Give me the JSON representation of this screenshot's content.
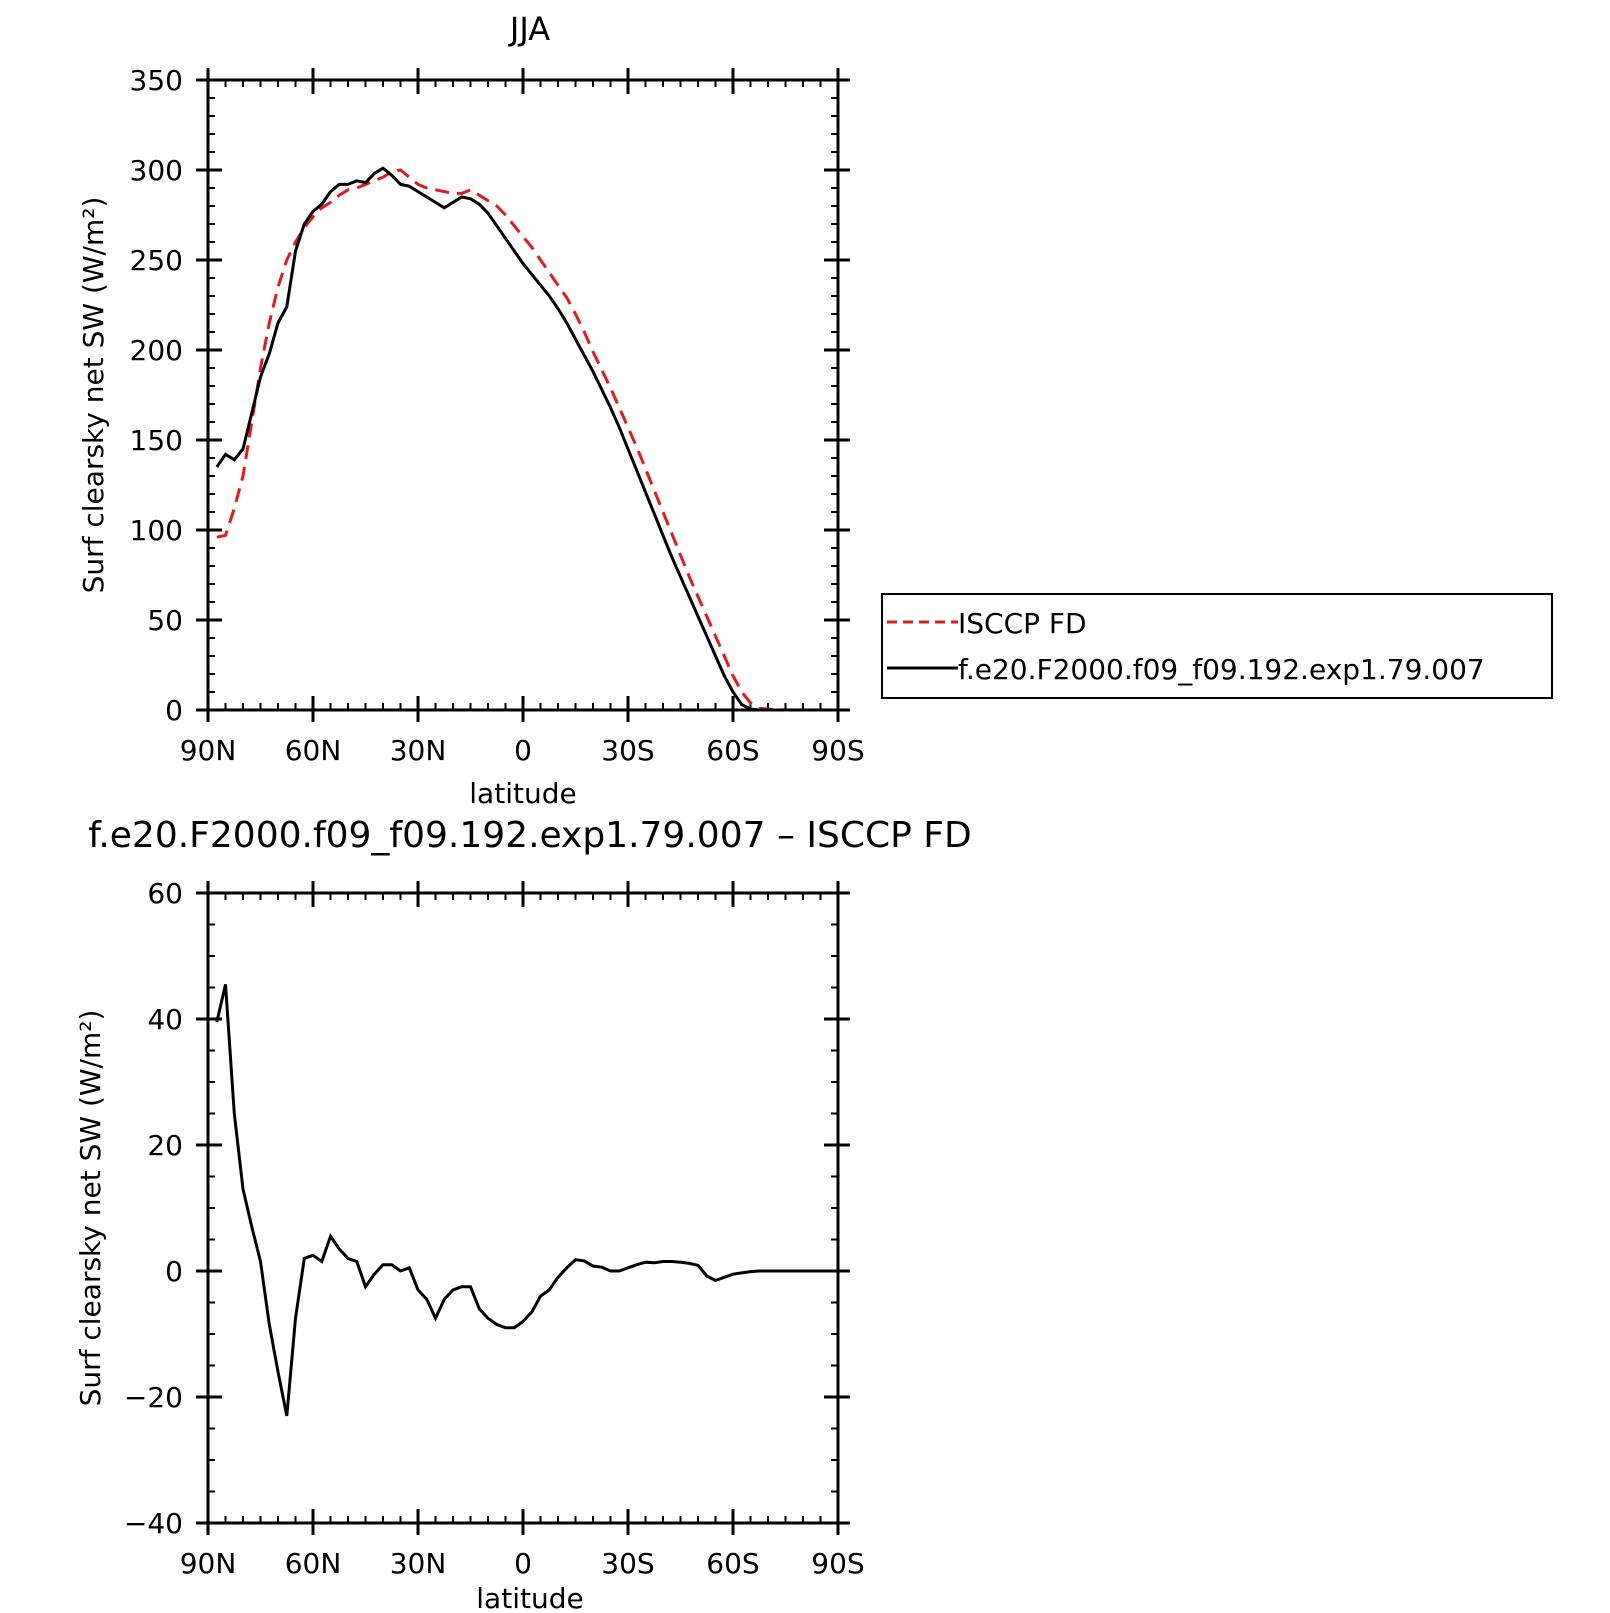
{
  "chart_data": [
    {
      "type": "line",
      "title": "JJA",
      "xlabel": "latitude",
      "ylabel": "Surf clearsky net SW (W/m²)",
      "xlim": [
        90,
        -90
      ],
      "ylim": [
        0,
        350
      ],
      "xticks": [
        {
          "value": 90,
          "label": "90N"
        },
        {
          "value": 60,
          "label": "60N"
        },
        {
          "value": 30,
          "label": "30N"
        },
        {
          "value": 0,
          "label": "0"
        },
        {
          "value": -30,
          "label": "30S"
        },
        {
          "value": -60,
          "label": "60S"
        },
        {
          "value": -90,
          "label": "90S"
        }
      ],
      "yticks": [
        {
          "value": 0,
          "label": "0"
        },
        {
          "value": 50,
          "label": "50"
        },
        {
          "value": 100,
          "label": "100"
        },
        {
          "value": 150,
          "label": "150"
        },
        {
          "value": 200,
          "label": "200"
        },
        {
          "value": 250,
          "label": "250"
        },
        {
          "value": 300,
          "label": "300"
        },
        {
          "value": 350,
          "label": "350"
        }
      ],
      "legend": {
        "placement": "right"
      },
      "series": [
        {
          "name": "ISCCP FD",
          "color": "#e31a1c",
          "style": "dashed",
          "x": [
            87.5,
            85,
            82.5,
            80,
            77.5,
            75,
            72.5,
            70,
            67.5,
            65,
            62.5,
            60,
            57.5,
            55,
            52.5,
            50,
            47.5,
            45,
            42.5,
            40,
            37.5,
            35,
            32.5,
            30,
            27.5,
            25,
            22.5,
            20,
            17.5,
            15,
            12.5,
            10,
            7.5,
            5,
            2.5,
            0,
            -2.5,
            -5,
            -7.5,
            -10,
            -12.5,
            -15,
            -17.5,
            -20,
            -22.5,
            -25,
            -27.5,
            -30,
            -32.5,
            -35,
            -37.5,
            -40,
            -42.5,
            -45,
            -47.5,
            -50,
            -52.5,
            -55,
            -57.5,
            -60,
            -62.5,
            -65,
            -67.5,
            -70,
            -72.5,
            -75,
            -77.5,
            -80,
            -82.5,
            -85,
            -87.5
          ],
          "values": [
            96,
            97,
            112,
            130,
            160,
            190,
            215,
            235,
            250,
            260,
            268,
            274,
            279,
            282,
            286,
            289,
            290,
            292,
            294,
            296,
            299,
            300,
            296,
            292,
            290,
            289,
            288,
            287,
            287,
            289,
            286,
            283,
            280,
            275,
            269,
            263,
            257,
            250,
            243,
            236,
            229,
            220,
            210,
            199,
            189,
            179,
            168,
            157,
            146,
            134,
            122,
            110,
            98,
            86,
            74,
            63,
            52,
            41,
            30,
            19,
            10,
            4,
            1,
            0.5,
            0.2,
            0,
            0,
            0,
            0,
            0,
            0
          ]
        },
        {
          "name": "f.e20.F2000.f09_f09.192.exp1.79.007",
          "color": "#000000",
          "style": "solid",
          "x": [
            87.5,
            85,
            82.5,
            80,
            77.5,
            75,
            72.5,
            70,
            67.5,
            65,
            62.5,
            60,
            57.5,
            55,
            52.5,
            50,
            47.5,
            45,
            42.5,
            40,
            37.5,
            35,
            32.5,
            30,
            27.5,
            25,
            22.5,
            20,
            17.5,
            15,
            12.5,
            10,
            7.5,
            5,
            2.5,
            0,
            -2.5,
            -5,
            -7.5,
            -10,
            -12.5,
            -15,
            -17.5,
            -20,
            -22.5,
            -25,
            -27.5,
            -30,
            -32.5,
            -35,
            -37.5,
            -40,
            -42.5,
            -45,
            -47.5,
            -50,
            -52.5,
            -55,
            -57.5,
            -60,
            -62.5,
            -65,
            -67.5,
            -70,
            -72.5,
            -75,
            -77.5,
            -80,
            -82.5,
            -85,
            -87.5
          ],
          "values": [
            135,
            142,
            139,
            145,
            165,
            185,
            198,
            215,
            224,
            255,
            270,
            277,
            281,
            288,
            292,
            292,
            294,
            293,
            298,
            301,
            297,
            292,
            291,
            288,
            285,
            282,
            279,
            282,
            285,
            284,
            281,
            276,
            269,
            262,
            255,
            248,
            242,
            236,
            230,
            223,
            215,
            206,
            197,
            188,
            178,
            168,
            157,
            145,
            133,
            121,
            109,
            97,
            85,
            74,
            63,
            52,
            41,
            30,
            19,
            10,
            3,
            0.5,
            0,
            0,
            0,
            0,
            0,
            0,
            0,
            0,
            0
          ]
        }
      ]
    },
    {
      "type": "line",
      "title": "f.e20.F2000.f09_f09.192.exp1.79.007 – ISCCP FD",
      "xlabel": "latitude",
      "ylabel": "Surf clearsky net SW (W/m²)",
      "xlim": [
        90,
        -90
      ],
      "ylim": [
        -40,
        60
      ],
      "xticks": [
        {
          "value": 90,
          "label": "90N"
        },
        {
          "value": 60,
          "label": "60N"
        },
        {
          "value": 30,
          "label": "30N"
        },
        {
          "value": 0,
          "label": "0"
        },
        {
          "value": -30,
          "label": "30S"
        },
        {
          "value": -60,
          "label": "60S"
        },
        {
          "value": -90,
          "label": "90S"
        }
      ],
      "yticks": [
        {
          "value": -40,
          "label": "−40"
        },
        {
          "value": -20,
          "label": "−20"
        },
        {
          "value": 0,
          "label": "0"
        },
        {
          "value": 20,
          "label": "20"
        },
        {
          "value": 40,
          "label": "40"
        },
        {
          "value": 60,
          "label": "60"
        }
      ],
      "series": [
        {
          "color": "#000000",
          "style": "solid",
          "x": [
            87.5,
            85,
            82.5,
            80,
            77.5,
            75,
            72.5,
            70,
            67.5,
            65,
            62.5,
            60,
            57.5,
            55,
            52.5,
            50,
            47.5,
            45,
            42.5,
            40,
            37.5,
            35,
            32.5,
            30,
            27.5,
            25,
            22.5,
            20,
            17.5,
            15,
            12.5,
            10,
            7.5,
            5,
            2.5,
            0,
            -2.5,
            -5,
            -7.5,
            -10,
            -12.5,
            -15,
            -17.5,
            -20,
            -22.5,
            -25,
            -27.5,
            -30,
            -32.5,
            -35,
            -37.5,
            -40,
            -42.5,
            -45,
            -47.5,
            -50,
            -52.5,
            -55,
            -57.5,
            -60,
            -62.5,
            -65,
            -67.5,
            -70,
            -72.5,
            -75,
            -77.5,
            -80,
            -82.5,
            -85,
            -87.5
          ],
          "values": [
            39.5,
            45.5,
            25,
            13,
            7,
            1.5,
            -8.5,
            -16,
            -23,
            -7.5,
            2,
            2.5,
            1.5,
            5.5,
            3.5,
            2,
            1.5,
            -2.5,
            -0.5,
            1,
            1,
            0,
            0.5,
            -3,
            -4.5,
            -7.5,
            -4.5,
            -3,
            -2.5,
            -2.5,
            -6,
            -7.5,
            -8.5,
            -9,
            -9,
            -8,
            -6.5,
            -4,
            -3,
            -1,
            0.5,
            1.8,
            1.6,
            0.8,
            0.6,
            0,
            0,
            0.5,
            1,
            1.4,
            1.3,
            1.5,
            1.5,
            1.4,
            1.2,
            0.9,
            -0.8,
            -1.5,
            -1,
            -0.5,
            -0.3,
            -0.1,
            0,
            0,
            0,
            0,
            0,
            0,
            0,
            0,
            0
          ]
        }
      ]
    }
  ]
}
